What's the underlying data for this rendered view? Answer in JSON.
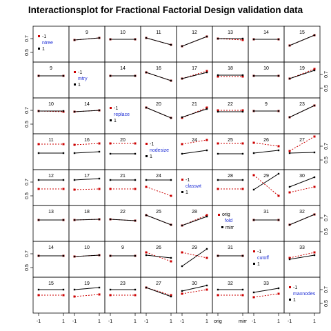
{
  "chart_data": {
    "type": "interaction-plot-matrix",
    "title": "Interactionsplot for Fractional Factorial Design validation data",
    "factors": [
      {
        "name": "ntree",
        "levels": [
          "-1",
          "1"
        ],
        "tick_labels": [
          "-1",
          "1"
        ]
      },
      {
        "name": "mtry",
        "levels": [
          "-1",
          "1"
        ],
        "tick_labels": [
          "-1",
          "1"
        ]
      },
      {
        "name": "replace",
        "levels": [
          "-1",
          "1"
        ],
        "tick_labels": [
          "-1",
          "1"
        ]
      },
      {
        "name": "nodesize",
        "levels": [
          "-1",
          "1"
        ],
        "tick_labels": [
          "-1",
          "1"
        ]
      },
      {
        "name": "classwt",
        "levels": [
          "-1",
          "1"
        ],
        "tick_labels": [
          "-1",
          "1"
        ]
      },
      {
        "name": "fold",
        "levels": [
          "orig",
          "mirr"
        ],
        "tick_labels": [
          "orig",
          "mirr"
        ]
      },
      {
        "name": "cutoff",
        "levels": [
          "-1",
          "1"
        ],
        "tick_labels": [
          "-1",
          "1"
        ]
      },
      {
        "name": "maxnodes",
        "levels": [
          "-1",
          "1"
        ],
        "tick_labels": [
          "-1",
          "1"
        ]
      }
    ],
    "y_axis": {
      "tick_labels": [
        "0.5",
        "0.7"
      ],
      "tick_values": [
        0.5,
        0.7
      ],
      "ylim": [
        0.42,
        0.82
      ]
    },
    "series_colors": {
      "level_low": "#cc0000",
      "level_high": "#000000"
    },
    "series_styles": {
      "level_low": "dotted",
      "level_high": "solid"
    },
    "panels": [
      {
        "row": 0,
        "col": 1,
        "label": "9",
        "red": [
          0.68,
          0.71
        ],
        "black": [
          0.68,
          0.71
        ]
      },
      {
        "row": 0,
        "col": 2,
        "label": "10",
        "red": [
          0.69,
          0.69
        ],
        "black": [
          0.69,
          0.69
        ]
      },
      {
        "row": 0,
        "col": 3,
        "label": "11",
        "red": [
          0.71,
          0.61
        ],
        "black": [
          0.71,
          0.61
        ]
      },
      {
        "row": 0,
        "col": 4,
        "label": "12",
        "red": [
          0.59,
          0.73
        ],
        "black": [
          0.59,
          0.73
        ]
      },
      {
        "row": 0,
        "col": 5,
        "label": "13",
        "red": [
          0.7,
          0.68
        ],
        "black": [
          0.7,
          0.7
        ]
      },
      {
        "row": 0,
        "col": 6,
        "label": "14",
        "red": [
          0.69,
          0.69
        ],
        "black": [
          0.69,
          0.69
        ]
      },
      {
        "row": 0,
        "col": 7,
        "label": "15",
        "red": [
          0.6,
          0.75
        ],
        "black": [
          0.6,
          0.75
        ]
      },
      {
        "row": 1,
        "col": 0,
        "label": "9",
        "red": [
          0.68,
          0.68
        ],
        "black": [
          0.68,
          0.68
        ]
      },
      {
        "row": 1,
        "col": 2,
        "label": "14",
        "red": [
          0.68,
          0.68
        ],
        "black": [
          0.68,
          0.68
        ]
      },
      {
        "row": 1,
        "col": 3,
        "label": "16",
        "red": [
          0.73,
          0.61
        ],
        "black": [
          0.73,
          0.61
        ]
      },
      {
        "row": 1,
        "col": 4,
        "label": "17",
        "red": [
          0.64,
          0.75
        ],
        "black": [
          0.64,
          0.73
        ]
      },
      {
        "row": 1,
        "col": 5,
        "label": "18",
        "red": [
          0.67,
          0.67
        ],
        "black": [
          0.69,
          0.69
        ]
      },
      {
        "row": 1,
        "col": 6,
        "label": "10",
        "red": [
          0.68,
          0.68
        ],
        "black": [
          0.68,
          0.68
        ]
      },
      {
        "row": 1,
        "col": 7,
        "label": "19",
        "red": [
          0.64,
          0.78
        ],
        "black": [
          0.64,
          0.76
        ]
      },
      {
        "row": 2,
        "col": 0,
        "label": "10",
        "red": [
          0.69,
          0.68
        ],
        "black": [
          0.69,
          0.69
        ]
      },
      {
        "row": 2,
        "col": 1,
        "label": "14",
        "red": [
          0.68,
          0.7
        ],
        "black": [
          0.68,
          0.7
        ]
      },
      {
        "row": 2,
        "col": 3,
        "label": "20",
        "red": [
          0.74,
          0.59
        ],
        "black": [
          0.74,
          0.59
        ]
      },
      {
        "row": 2,
        "col": 4,
        "label": "21",
        "red": [
          0.59,
          0.74
        ],
        "black": [
          0.6,
          0.72
        ]
      },
      {
        "row": 2,
        "col": 5,
        "label": "22",
        "red": [
          0.7,
          0.7
        ],
        "black": [
          0.68,
          0.68
        ]
      },
      {
        "row": 2,
        "col": 6,
        "label": "9",
        "red": [
          0.69,
          0.69
        ],
        "black": [
          0.69,
          0.69
        ]
      },
      {
        "row": 2,
        "col": 7,
        "label": "23",
        "red": [
          0.6,
          0.77
        ],
        "black": [
          0.6,
          0.77
        ]
      },
      {
        "row": 3,
        "col": 0,
        "label": "11",
        "red": [
          0.73,
          0.73
        ],
        "black": [
          0.6,
          0.6
        ]
      },
      {
        "row": 3,
        "col": 1,
        "label": "16",
        "red": [
          0.72,
          0.74
        ],
        "black": [
          0.6,
          0.62
        ]
      },
      {
        "row": 3,
        "col": 2,
        "label": "20",
        "red": [
          0.74,
          0.74
        ],
        "black": [
          0.59,
          0.59
        ]
      },
      {
        "row": 3,
        "col": 4,
        "label": "24",
        "red": [
          0.73,
          0.79
        ],
        "black": [
          0.59,
          0.64
        ]
      },
      {
        "row": 3,
        "col": 5,
        "label": "25",
        "red": [
          0.74,
          0.74
        ],
        "black": [
          0.59,
          0.59
        ]
      },
      {
        "row": 3,
        "col": 6,
        "label": "26",
        "red": [
          0.75,
          0.7
        ],
        "black": [
          0.6,
          0.64
        ]
      },
      {
        "row": 3,
        "col": 7,
        "label": "27",
        "red": [
          0.63,
          0.84
        ],
        "black": [
          0.6,
          0.61
        ]
      },
      {
        "row": 4,
        "col": 0,
        "label": "12",
        "red": [
          0.6,
          0.6
        ],
        "black": [
          0.73,
          0.73
        ]
      },
      {
        "row": 4,
        "col": 1,
        "label": "17",
        "red": [
          0.59,
          0.6
        ],
        "black": [
          0.73,
          0.75
        ]
      },
      {
        "row": 4,
        "col": 2,
        "label": "21",
        "red": [
          0.6,
          0.6
        ],
        "black": [
          0.73,
          0.73
        ]
      },
      {
        "row": 4,
        "col": 3,
        "label": "24",
        "red": [
          0.63,
          0.5
        ],
        "black": [
          0.73,
          0.73
        ]
      },
      {
        "row": 4,
        "col": 5,
        "label": "28",
        "red": [
          0.6,
          0.6
        ],
        "black": [
          0.73,
          0.73
        ]
      },
      {
        "row": 4,
        "col": 6,
        "label": "29",
        "red": [
          0.8,
          0.5
        ],
        "black": [
          0.59,
          0.82
        ]
      },
      {
        "row": 4,
        "col": 7,
        "label": "30",
        "red": [
          0.55,
          0.63
        ],
        "black": [
          0.63,
          0.77
        ]
      },
      {
        "row": 5,
        "col": 0,
        "label": "13",
        "red": [
          0.67,
          0.67
        ],
        "black": [
          0.67,
          0.67
        ]
      },
      {
        "row": 5,
        "col": 1,
        "label": "18",
        "red": [
          0.67,
          0.68
        ],
        "black": [
          0.67,
          0.68
        ]
      },
      {
        "row": 5,
        "col": 2,
        "label": "22",
        "red": [
          0.68,
          0.66
        ],
        "black": [
          0.68,
          0.66
        ]
      },
      {
        "row": 5,
        "col": 3,
        "label": "25",
        "red": [
          0.74,
          0.6
        ],
        "black": [
          0.74,
          0.6
        ]
      },
      {
        "row": 5,
        "col": 4,
        "label": "28",
        "red": [
          0.59,
          0.74
        ],
        "black": [
          0.59,
          0.72
        ]
      },
      {
        "row": 5,
        "col": 6,
        "label": "31",
        "red": [
          0.67,
          0.67
        ],
        "black": [
          0.67,
          0.67
        ]
      },
      {
        "row": 5,
        "col": 7,
        "label": "32",
        "red": [
          0.6,
          0.75
        ],
        "black": [
          0.6,
          0.75
        ]
      },
      {
        "row": 6,
        "col": 0,
        "label": "14",
        "red": [
          0.67,
          0.67
        ],
        "black": [
          0.67,
          0.67
        ]
      },
      {
        "row": 6,
        "col": 1,
        "label": "10",
        "red": [
          0.66,
          0.68
        ],
        "black": [
          0.66,
          0.68
        ]
      },
      {
        "row": 6,
        "col": 2,
        "label": "9",
        "red": [
          0.67,
          0.67
        ],
        "black": [
          0.67,
          0.67
        ]
      },
      {
        "row": 6,
        "col": 3,
        "label": "26",
        "red": [
          0.72,
          0.59
        ],
        "black": [
          0.68,
          0.64
        ]
      },
      {
        "row": 6,
        "col": 4,
        "label": "29",
        "red": [
          0.72,
          0.64
        ],
        "black": [
          0.52,
          0.77
        ]
      },
      {
        "row": 6,
        "col": 5,
        "label": "31",
        "red": [
          0.67,
          0.67
        ],
        "black": [
          0.67,
          0.67
        ]
      },
      {
        "row": 6,
        "col": 7,
        "label": "33",
        "red": [
          0.64,
          0.72
        ],
        "black": [
          0.62,
          0.68
        ]
      },
      {
        "row": 7,
        "col": 0,
        "label": "15",
        "red": [
          0.62,
          0.62
        ],
        "black": [
          0.7,
          0.7
        ]
      },
      {
        "row": 7,
        "col": 1,
        "label": "19",
        "red": [
          0.6,
          0.63
        ],
        "black": [
          0.7,
          0.73
        ]
      },
      {
        "row": 7,
        "col": 2,
        "label": "23",
        "red": [
          0.62,
          0.62
        ],
        "black": [
          0.7,
          0.7
        ]
      },
      {
        "row": 7,
        "col": 3,
        "label": "27",
        "red": [
          0.73,
          0.62
        ],
        "black": [
          0.73,
          0.6
        ]
      },
      {
        "row": 7,
        "col": 4,
        "label": "30",
        "red": [
          0.64,
          0.7
        ],
        "black": [
          0.68,
          0.76
        ]
      },
      {
        "row": 7,
        "col": 5,
        "label": "32",
        "red": [
          0.62,
          0.62
        ],
        "black": [
          0.7,
          0.7
        ]
      },
      {
        "row": 7,
        "col": 6,
        "label": "33",
        "red": [
          0.59,
          0.64
        ],
        "black": [
          0.66,
          0.72
        ]
      }
    ]
  }
}
